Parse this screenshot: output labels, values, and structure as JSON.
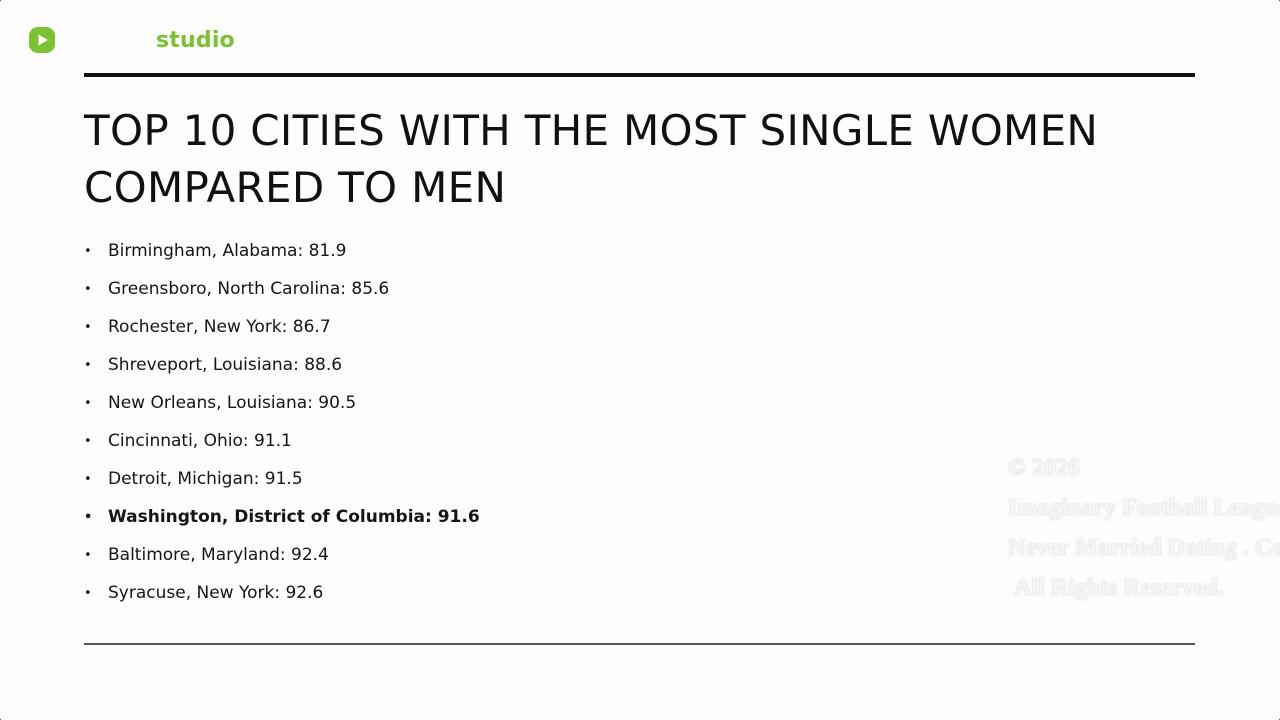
{
  "brand": {
    "name": "studio",
    "icon": "play-icon",
    "accent_color": "#7ac231"
  },
  "slide": {
    "title_line1": "TOP 10 CITIES WITH THE MOST SINGLE WOMEN",
    "title_line2": "COMPARED TO MEN",
    "bullet_char": "•",
    "cities": [
      {
        "label": "Birmingham, Alabama: 81.9",
        "bold": false
      },
      {
        "label": "Greensboro, North Carolina: 85.6",
        "bold": false
      },
      {
        "label": "Rochester, New York: 86.7",
        "bold": false
      },
      {
        "label": "Shreveport, Louisiana: 88.6",
        "bold": false
      },
      {
        "label": "New Orleans, Louisiana: 90.5",
        "bold": false
      },
      {
        "label": "Cincinnati, Ohio: 91.1",
        "bold": false
      },
      {
        "label": "Detroit, Michigan: 91.5",
        "bold": false
      },
      {
        "label": "Washington, District of Columbia: 91.6",
        "bold": true
      },
      {
        "label": "Baltimore, Maryland: 92.4",
        "bold": false
      },
      {
        "label": "Syracuse, New York: 92.6",
        "bold": false
      }
    ]
  },
  "watermark": {
    "line1": "© 2026",
    "line2": "Imaginary Football League",
    "line3": "Never Married Dating . Com",
    "line4": "All Rights Reserved."
  }
}
